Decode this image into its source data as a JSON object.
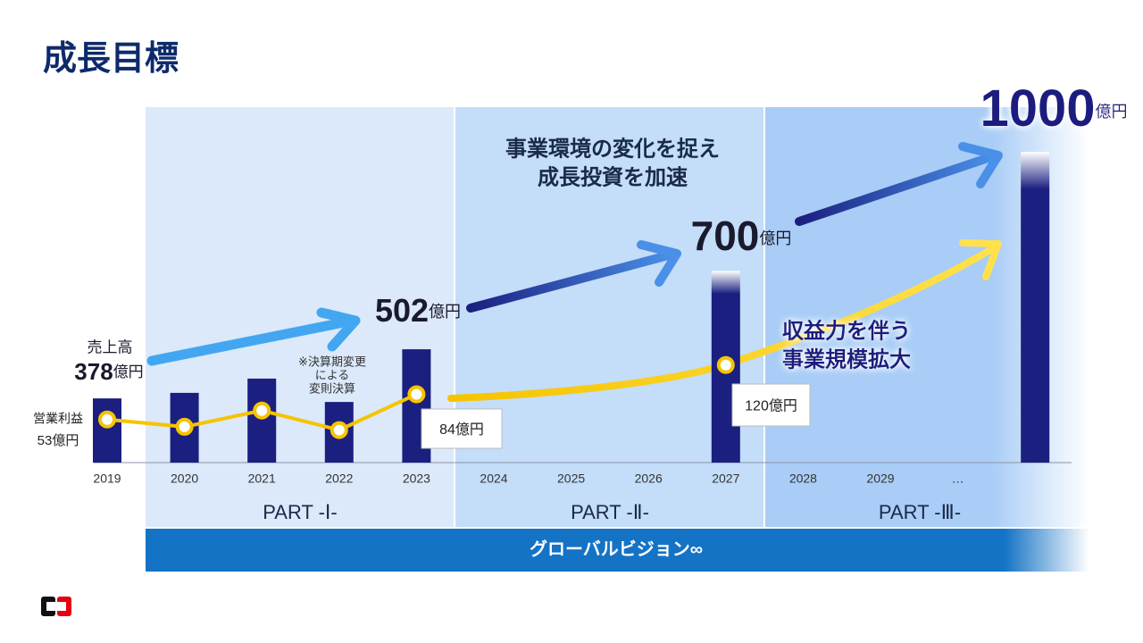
{
  "title": "成長目標",
  "chart_data": {
    "type": "bar",
    "unit": "億円",
    "categories": [
      "2019",
      "2020",
      "2021",
      "2022",
      "2023",
      "2024",
      "2025",
      "2026",
      "2027",
      "2028",
      "2029",
      "…",
      null
    ],
    "series": [
      {
        "name": "売上高",
        "color": "#1b1f80",
        "values": [
          378,
          392,
          428,
          369,
          502,
          null,
          null,
          null,
          700,
          null,
          null,
          null,
          1000
        ],
        "value_labels": [
          "378",
          null,
          null,
          null,
          "502",
          null,
          null,
          null,
          "700",
          null,
          null,
          null,
          "1000"
        ]
      },
      {
        "name": "営業利益",
        "type": "line",
        "axis": "y2",
        "color": "#f5c400",
        "values": [
          53,
          44,
          64,
          40,
          84,
          null,
          null,
          null,
          120,
          null,
          null,
          null,
          null
        ],
        "value_labels": [
          "53億円",
          null,
          null,
          null,
          "84億円",
          null,
          null,
          null,
          "120億円",
          null,
          null,
          null,
          null
        ]
      }
    ],
    "ylim": [
      216,
      1113
    ],
    "y2lim": [
      0,
      437
    ],
    "note_lines": [
      "※決算期変更",
      "による",
      "変則決算"
    ],
    "annotation_1": [
      "事業環境の変化を捉え",
      "成長投資を加速"
    ],
    "annotation_2": [
      "収益力を伴う",
      "事業規模拡大"
    ],
    "phases": [
      "PART -Ⅰ-",
      "PART -Ⅱ-",
      "PART -Ⅲ-"
    ],
    "banner": "グローバルビジョン∞"
  }
}
